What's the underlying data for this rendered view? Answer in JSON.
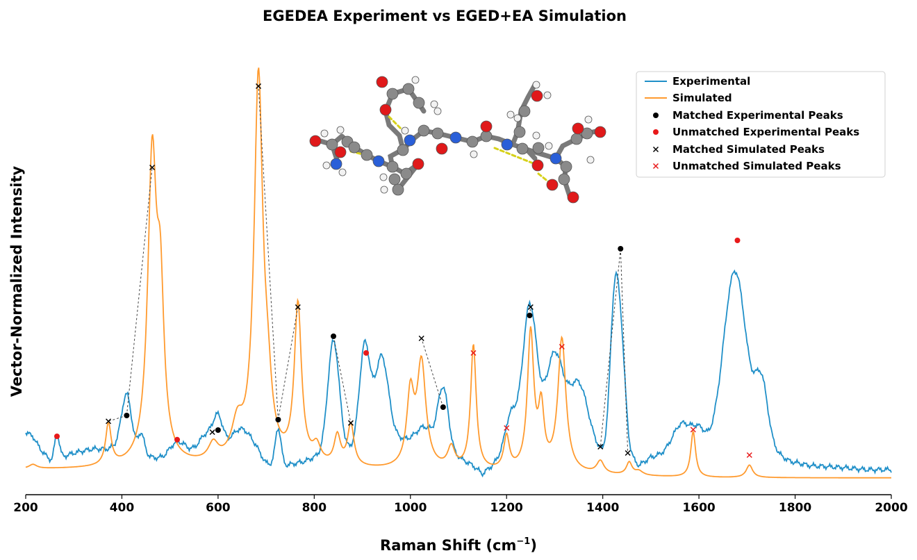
{
  "chart_data": {
    "type": "line",
    "title": "EGEDEA Experiment vs EGED+EA Simulation",
    "xlabel": "Raman Shift (cm",
    "xlabel_sup": "−1",
    "xlabel_close": ")",
    "ylabel": "Vector-Normalized Intensity",
    "xlim": [
      200,
      2000
    ],
    "ylim": [
      0,
      1.0
    ],
    "xticks": [
      200,
      400,
      600,
      800,
      1000,
      1200,
      1400,
      1600,
      1800,
      2000
    ],
    "grid": false,
    "legend_position": "top-right",
    "colors": {
      "experimental": "#1f8fc8",
      "simulated": "#ff9a2e",
      "matched_exp": "#000000",
      "unmatched_exp": "#e8191a",
      "matched_sim": "#000000",
      "unmatched_sim": "#e8191a"
    },
    "legend": [
      "Experimental",
      "Simulated",
      "Matched Experimental Peaks",
      "Unmatched Experimental Peaks",
      "Matched Simulated Peaks",
      "Unmatched Simulated Peaks"
    ],
    "experimental_peaks": [
      {
        "center": 265,
        "height": 0.06,
        "width": 6
      },
      {
        "center": 410,
        "height": 0.13,
        "width": 12
      },
      {
        "center": 440,
        "height": 0.05,
        "width": 8
      },
      {
        "center": 515,
        "height": 0.04,
        "width": 22
      },
      {
        "center": 575,
        "height": 0.05,
        "width": 20
      },
      {
        "center": 600,
        "height": 0.07,
        "width": 12
      },
      {
        "center": 650,
        "height": 0.06,
        "width": 28
      },
      {
        "center": 725,
        "height": 0.09,
        "width": 7
      },
      {
        "center": 840,
        "height": 0.27,
        "width": 14
      },
      {
        "center": 905,
        "height": 0.24,
        "width": 13
      },
      {
        "center": 940,
        "height": 0.2,
        "width": 16
      },
      {
        "center": 1030,
        "height": 0.04,
        "width": 20
      },
      {
        "center": 1068,
        "height": 0.15,
        "width": 13
      },
      {
        "center": 1210,
        "height": 0.08,
        "width": 14
      },
      {
        "center": 1248,
        "height": 0.33,
        "width": 17
      },
      {
        "center": 1300,
        "height": 0.2,
        "width": 22
      },
      {
        "center": 1350,
        "height": 0.14,
        "width": 22
      },
      {
        "center": 1425,
        "height": 0.38,
        "width": 11
      },
      {
        "center": 1440,
        "height": 0.2,
        "width": 10
      },
      {
        "center": 1565,
        "height": 0.07,
        "width": 22
      },
      {
        "center": 1600,
        "height": 0.05,
        "width": 16
      },
      {
        "center": 1675,
        "height": 0.43,
        "width": 28
      },
      {
        "center": 1730,
        "height": 0.16,
        "width": 16
      }
    ],
    "experimental_points": [
      [
        200,
        0.11
      ],
      [
        215,
        0.1
      ],
      [
        230,
        0.07
      ],
      [
        245,
        0.05
      ],
      [
        255,
        0.04
      ],
      [
        275,
        0.05
      ],
      [
        300,
        0.06
      ],
      [
        340,
        0.07
      ],
      [
        370,
        0.07
      ],
      [
        395,
        0.08
      ],
      [
        430,
        0.06
      ],
      [
        460,
        0.05
      ],
      [
        490,
        0.04
      ],
      [
        530,
        0.05
      ],
      [
        560,
        0.05
      ],
      [
        600,
        0.06
      ],
      [
        640,
        0.06
      ],
      [
        680,
        0.05
      ],
      [
        700,
        0.03
      ],
      [
        715,
        0.03
      ],
      [
        740,
        0.03
      ],
      [
        780,
        0.04
      ],
      [
        800,
        0.05
      ],
      [
        880,
        0.07
      ],
      [
        960,
        0.1
      ],
      [
        1000,
        0.09
      ],
      [
        1040,
        0.08
      ],
      [
        1100,
        0.05
      ],
      [
        1130,
        0.03
      ],
      [
        1150,
        0.01
      ],
      [
        1170,
        0.03
      ],
      [
        1200,
        0.07
      ],
      [
        1300,
        0.1
      ],
      [
        1370,
        0.08
      ],
      [
        1400,
        0.06
      ],
      [
        1460,
        0.05
      ],
      [
        1475,
        0.03
      ],
      [
        1500,
        0.05
      ],
      [
        1540,
        0.06
      ],
      [
        1600,
        0.06
      ],
      [
        1630,
        0.07
      ],
      [
        1760,
        0.06
      ],
      [
        1790,
        0.04
      ],
      [
        1830,
        0.03
      ],
      [
        1900,
        0.025
      ],
      [
        1950,
        0.02
      ],
      [
        2000,
        0.02
      ]
    ],
    "simulated_peaks": [
      {
        "center": 215,
        "height": 0.01,
        "width": 10
      },
      {
        "center": 372,
        "height": 0.1,
        "width": 7
      },
      {
        "center": 463,
        "height": 0.72,
        "width": 11
      },
      {
        "center": 480,
        "height": 0.35,
        "width": 9
      },
      {
        "center": 590,
        "height": 0.04,
        "width": 12
      },
      {
        "center": 640,
        "height": 0.08,
        "width": 14
      },
      {
        "center": 684,
        "height": 0.92,
        "width": 11
      },
      {
        "center": 703,
        "height": 0.12,
        "width": 10
      },
      {
        "center": 766,
        "height": 0.38,
        "width": 9
      },
      {
        "center": 805,
        "height": 0.04,
        "width": 10
      },
      {
        "center": 848,
        "height": 0.07,
        "width": 8
      },
      {
        "center": 876,
        "height": 0.1,
        "width": 8
      },
      {
        "center": 1000,
        "height": 0.17,
        "width": 9
      },
      {
        "center": 1023,
        "height": 0.25,
        "width": 11
      },
      {
        "center": 1085,
        "height": 0.05,
        "width": 9
      },
      {
        "center": 1131,
        "height": 0.3,
        "width": 7
      },
      {
        "center": 1200,
        "height": 0.08,
        "width": 7
      },
      {
        "center": 1250,
        "height": 0.33,
        "width": 8
      },
      {
        "center": 1272,
        "height": 0.14,
        "width": 7
      },
      {
        "center": 1315,
        "height": 0.32,
        "width": 10
      },
      {
        "center": 1395,
        "height": 0.03,
        "width": 9
      },
      {
        "center": 1455,
        "height": 0.03,
        "width": 7
      },
      {
        "center": 1475,
        "height": 0.01,
        "width": 10
      },
      {
        "center": 1588,
        "height": 0.11,
        "width": 6
      },
      {
        "center": 1705,
        "height": 0.03,
        "width": 8
      }
    ],
    "simulated_baseline": [
      [
        200,
        0.02
      ],
      [
        400,
        0.02
      ],
      [
        600,
        0.025
      ],
      [
        800,
        0.02
      ],
      [
        1000,
        0.015
      ],
      [
        1200,
        0.01
      ],
      [
        1400,
        0.005
      ],
      [
        1600,
        0.0
      ],
      [
        2000,
        0.0
      ]
    ],
    "matched_experimental_peaks": [
      [
        410,
        0.15
      ],
      [
        600,
        0.115
      ],
      [
        725,
        0.14
      ],
      [
        840,
        0.34
      ],
      [
        1068,
        0.17
      ],
      [
        1248,
        0.39
      ],
      [
        1437,
        0.55
      ]
    ],
    "unmatched_experimental_peaks": [
      [
        265,
        0.1
      ],
      [
        515,
        0.092
      ],
      [
        908,
        0.3
      ],
      [
        1680,
        0.57
      ]
    ],
    "matched_simulated_peaks": [
      [
        372,
        0.136
      ],
      [
        463,
        0.745
      ],
      [
        588,
        0.11
      ],
      [
        684,
        0.94
      ],
      [
        766,
        0.41
      ],
      [
        876,
        0.132
      ],
      [
        1023,
        0.335
      ],
      [
        1250,
        0.41
      ],
      [
        1395,
        0.075
      ],
      [
        1452,
        0.06
      ]
    ],
    "unmatched_simulated_peaks": [
      [
        1131,
        0.3
      ],
      [
        1200,
        0.12
      ],
      [
        1315,
        0.315
      ],
      [
        1588,
        0.116
      ],
      [
        1705,
        0.055
      ]
    ],
    "match_pairs": [
      [
        [
          410,
          0.15
        ],
        [
          372,
          0.136
        ]
      ],
      [
        [
          410,
          0.15
        ],
        [
          463,
          0.745
        ]
      ],
      [
        [
          600,
          0.115
        ],
        [
          588,
          0.11
        ]
      ],
      [
        [
          725,
          0.14
        ],
        [
          684,
          0.94
        ]
      ],
      [
        [
          725,
          0.14
        ],
        [
          766,
          0.41
        ]
      ],
      [
        [
          840,
          0.34
        ],
        [
          876,
          0.132
        ]
      ],
      [
        [
          1068,
          0.17
        ],
        [
          1023,
          0.335
        ]
      ],
      [
        [
          1248,
          0.39
        ],
        [
          1250,
          0.41
        ]
      ],
      [
        [
          1437,
          0.55
        ],
        [
          1395,
          0.075
        ]
      ],
      [
        [
          1437,
          0.55
        ],
        [
          1452,
          0.06
        ]
      ]
    ]
  },
  "molecule_inset": {
    "atom_colors": {
      "C": "#8a8a8a",
      "O": "#e0191a",
      "N": "#2a5fd8",
      "H": "#f2f2f2"
    }
  }
}
